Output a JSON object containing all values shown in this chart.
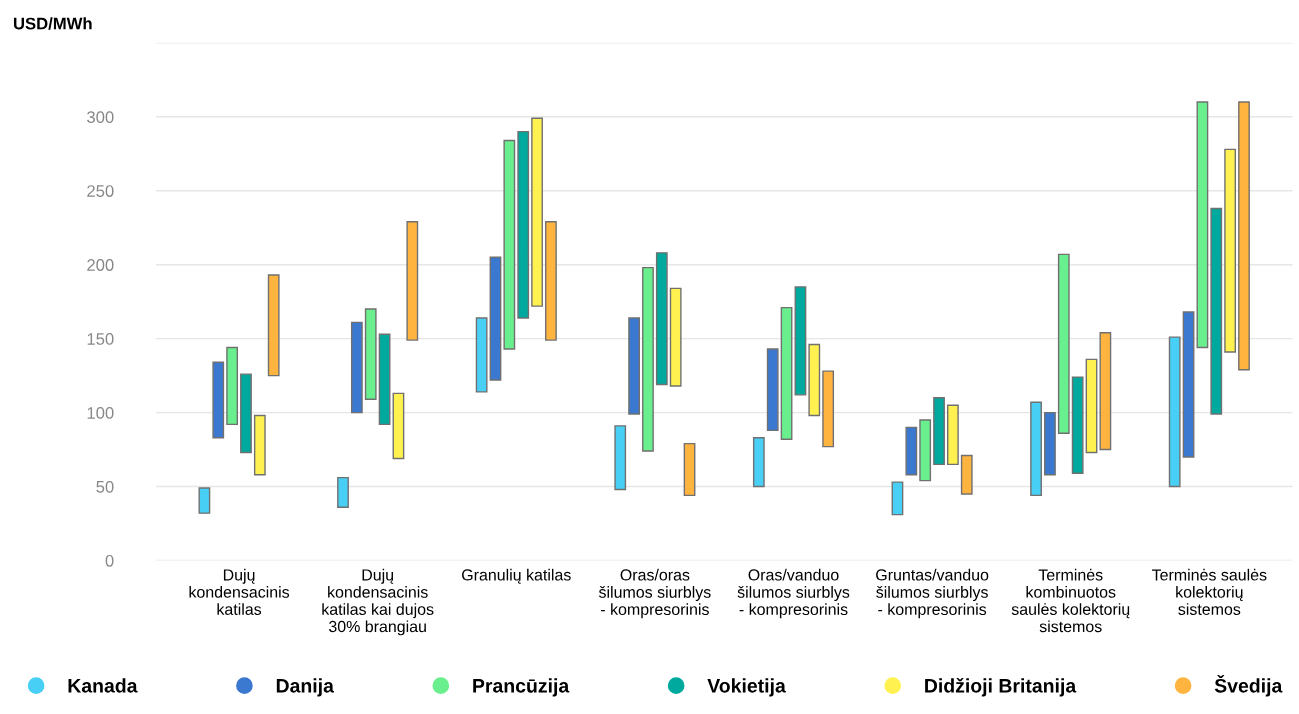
{
  "chart_data": {
    "type": "bar",
    "ylabel": "USD/MWh",
    "categories": [
      "Dujų\nkondensacinis\nkatilas",
      "Dujų\nkondensacinis\nkatilas kai dujos\n30% brangiau",
      "Granulių katilas",
      "Oras/oras\nšilumos siurblys\n- kompresorinis",
      "Oras/vanduo\nšilumos siurblys\n- kompresorinis",
      "Gruntas/vanduo\nšilumos siurblys\n- kompresorinis",
      "Terminės\nkombinuotos\nsaulės kolektorių\nsistemos",
      "Terminės saulės\nkolektorių\nsistemos"
    ],
    "series": [
      {
        "name": "Kanada",
        "color": "#48cff5",
        "base": [
          32,
          36,
          114,
          48,
          50,
          31,
          44,
          50
        ],
        "values": [
          17,
          20,
          50,
          43,
          33,
          22,
          63,
          101
        ]
      },
      {
        "name": "Danija",
        "color": "#3b78d0",
        "base": [
          83,
          100,
          122,
          99,
          88,
          58,
          58,
          70
        ],
        "values": [
          51,
          61,
          83,
          65,
          55,
          32,
          42,
          98
        ]
      },
      {
        "name": "Prancūzija",
        "color": "#6aef8e",
        "base": [
          92,
          109,
          143,
          74,
          82,
          54,
          86,
          144
        ],
        "values": [
          52,
          61,
          141,
          124,
          89,
          41,
          121,
          166
        ]
      },
      {
        "name": "Vokietija",
        "color": "#00a99d",
        "base": [
          73,
          92,
          164,
          119,
          112,
          65,
          59,
          99
        ],
        "values": [
          53,
          61,
          126,
          89,
          73,
          45,
          65,
          139
        ]
      },
      {
        "name": "Didžioji Britanija",
        "color": "#fff150",
        "base": [
          58,
          69,
          172,
          118,
          98,
          65,
          73,
          141
        ],
        "values": [
          40,
          44,
          127,
          66,
          48,
          40,
          63,
          137
        ]
      },
      {
        "name": "Švedija",
        "color": "#ffb43f",
        "base": [
          125,
          149,
          149,
          44,
          77,
          45,
          75,
          129
        ],
        "values": [
          68,
          80,
          80,
          35,
          51,
          26,
          79,
          181
        ]
      }
    ],
    "ylim": [
      0,
      350
    ],
    "yticks": [
      0,
      50,
      100,
      150,
      200,
      250,
      300,
      {
        "value": 350,
        "label": null
      }
    ],
    "grid": "y",
    "legend": "bottom"
  }
}
